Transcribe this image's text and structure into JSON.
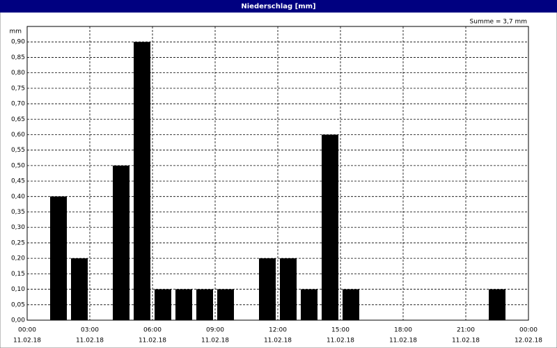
{
  "chart_data": {
    "type": "bar",
    "title": "Niederschlag [mm]",
    "y_unit": "mm",
    "annotation": "Summe = 3,7 mm",
    "x": [
      1.5,
      2.5,
      4.5,
      5.5,
      6.5,
      7.5,
      8.5,
      9.5,
      11.5,
      12.5,
      13.5,
      14.5,
      15.5,
      22.5
    ],
    "values": [
      0.4,
      0.2,
      0.5,
      0.9,
      0.1,
      0.1,
      0.1,
      0.1,
      0.2,
      0.2,
      0.1,
      0.6,
      0.1,
      0.1
    ],
    "color": "#000000",
    "xlim": [
      0,
      24
    ],
    "xticks": [
      {
        "value": 0,
        "label": "00:00",
        "date": "11.02.18"
      },
      {
        "value": 3,
        "label": "03:00",
        "date": "11.02.18"
      },
      {
        "value": 6,
        "label": "06:00",
        "date": "11.02.18"
      },
      {
        "value": 9,
        "label": "09:00",
        "date": "11.02.18"
      },
      {
        "value": 12,
        "label": "12:00",
        "date": "11.02.18"
      },
      {
        "value": 15,
        "label": "15:00",
        "date": "11.02.18"
      },
      {
        "value": 18,
        "label": "18:00",
        "date": "11.02.18"
      },
      {
        "value": 21,
        "label": "21:00",
        "date": "11.02.18"
      },
      {
        "value": 24,
        "label": "00:00",
        "date": "12.02.18"
      }
    ],
    "ylim": [
      0,
      0.95
    ],
    "yticks": [
      {
        "value": 0,
        "label": "0,00"
      },
      {
        "value": 0.05,
        "label": "0,05"
      },
      {
        "value": 0.1,
        "label": "0,10"
      },
      {
        "value": 0.15,
        "label": "0,15"
      },
      {
        "value": 0.2,
        "label": "0,20"
      },
      {
        "value": 0.25,
        "label": "0,25"
      },
      {
        "value": 0.3,
        "label": "0,30"
      },
      {
        "value": 0.35,
        "label": "0,35"
      },
      {
        "value": 0.4,
        "label": "0,40"
      },
      {
        "value": 0.45,
        "label": "0,45"
      },
      {
        "value": 0.5,
        "label": "0,50"
      },
      {
        "value": 0.55,
        "label": "0,55"
      },
      {
        "value": 0.6,
        "label": "0,60"
      },
      {
        "value": 0.65,
        "label": "0,65"
      },
      {
        "value": 0.7,
        "label": "0,70"
      },
      {
        "value": 0.75,
        "label": "0,75"
      },
      {
        "value": 0.8,
        "label": "0,80"
      },
      {
        "value": 0.85,
        "label": "0,85"
      },
      {
        "value": 0.9,
        "label": "0,90"
      }
    ],
    "grid": true
  }
}
